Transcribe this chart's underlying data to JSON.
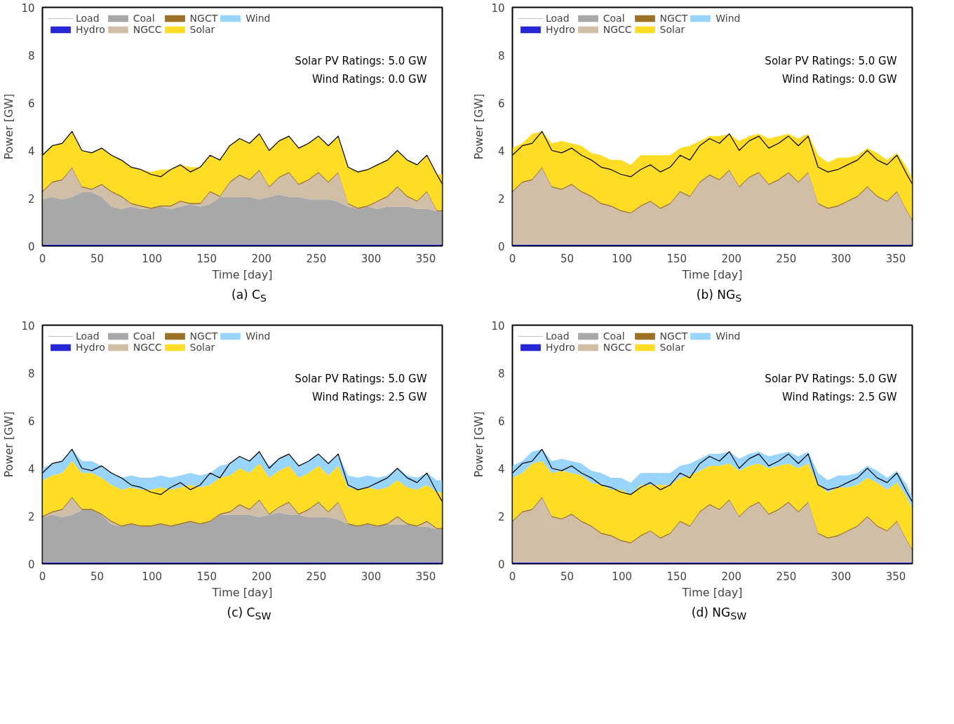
{
  "chart_data": [
    {
      "type": "area",
      "stacked": true,
      "title": "(a) C$_{S}$",
      "xlabel": "Time [day]",
      "ylabel": "Power [GW]",
      "xlim": [
        0,
        365
      ],
      "xticks": [
        0,
        50,
        100,
        150,
        200,
        250,
        300,
        350
      ],
      "ylim": [
        0,
        10
      ],
      "yticks": [
        0,
        2,
        4,
        6,
        8,
        10
      ],
      "legend": "top left",
      "annotations": [
        "Solar PV Ratings: 5.0 GW",
        "Wind Ratings: 0.0 GW"
      ],
      "x": [
        0,
        9,
        18,
        27,
        36,
        45,
        54,
        63,
        72,
        81,
        90,
        99,
        108,
        117,
        126,
        135,
        144,
        153,
        162,
        171,
        180,
        189,
        198,
        207,
        216,
        225,
        234,
        243,
        252,
        261,
        270,
        279,
        288,
        297,
        306,
        315,
        324,
        333,
        342,
        351,
        360,
        365
      ],
      "series": [
        {
          "name": "Load",
          "type": "line",
          "color": "#000000",
          "values": [
            3.8,
            4.2,
            4.3,
            4.8,
            4.0,
            3.9,
            4.1,
            3.8,
            3.6,
            3.3,
            3.2,
            3.0,
            2.9,
            3.2,
            3.4,
            3.1,
            3.3,
            3.8,
            3.6,
            4.2,
            4.5,
            4.3,
            4.7,
            4.0,
            4.4,
            4.6,
            4.1,
            4.3,
            4.6,
            4.2,
            4.6,
            3.3,
            3.1,
            3.2,
            3.4,
            3.6,
            4.0,
            3.6,
            3.4,
            3.8,
            3.0,
            2.6
          ]
        },
        {
          "name": "Hydro",
          "color": "#0000cc",
          "values": [
            0.05,
            0.05,
            0.05,
            0.05,
            0.05,
            0.05,
            0.05,
            0.05,
            0.05,
            0.05,
            0.05,
            0.05,
            0.05,
            0.05,
            0.05,
            0.05,
            0.05,
            0.05,
            0.05,
            0.05,
            0.05,
            0.05,
            0.05,
            0.05,
            0.05,
            0.05,
            0.05,
            0.05,
            0.05,
            0.05,
            0.05,
            0.05,
            0.05,
            0.05,
            0.05,
            0.05,
            0.05,
            0.05,
            0.05,
            0.05,
            0.05,
            0.05
          ]
        },
        {
          "name": "Coal",
          "color": "#999999",
          "values": [
            1.9,
            2.0,
            1.9,
            2.0,
            2.2,
            2.2,
            2.0,
            1.6,
            1.5,
            1.6,
            1.5,
            1.5,
            1.6,
            1.5,
            1.6,
            1.7,
            1.6,
            1.7,
            2.0,
            2.0,
            2.0,
            2.0,
            1.9,
            2.0,
            2.1,
            2.0,
            2.0,
            1.9,
            1.9,
            1.9,
            1.8,
            1.6,
            1.5,
            1.6,
            1.5,
            1.6,
            1.6,
            1.6,
            1.5,
            1.5,
            1.4,
            1.4
          ]
        },
        {
          "name": "NGCC",
          "color": "#c8b496",
          "values": [
            0.3,
            0.6,
            0.8,
            1.2,
            0.2,
            0.1,
            0.5,
            0.6,
            0.5,
            0.1,
            0.1,
            0,
            0,
            0.1,
            0.2,
            0,
            0.1,
            0.5,
            0,
            0.6,
            0.9,
            0.7,
            1.2,
            0.4,
            0.7,
            1.0,
            0.5,
            0.8,
            1.1,
            0.7,
            1.2,
            0.1,
            0,
            0,
            0.3,
            0.4,
            0.8,
            0.4,
            0.3,
            0.7,
            0,
            0
          ]
        },
        {
          "name": "NGCT",
          "color": "#8b5a00",
          "values": [
            0.05,
            0.05,
            0.05,
            0.05,
            0.05,
            0.05,
            0.05,
            0.05,
            0.05,
            0.05,
            0.05,
            0.05,
            0.05,
            0.05,
            0.05,
            0.05,
            0.05,
            0.05,
            0.05,
            0.05,
            0.05,
            0.05,
            0.05,
            0.05,
            0.05,
            0.05,
            0.05,
            0.05,
            0.05,
            0.05,
            0.05,
            0.05,
            0.05,
            0.05,
            0.05,
            0.05,
            0.05,
            0.05,
            0.05,
            0.05,
            0.05,
            0.05
          ]
        },
        {
          "name": "Solar",
          "color": "#ffd700",
          "values": [
            1.5,
            1.5,
            1.5,
            1.5,
            1.5,
            1.5,
            1.5,
            1.5,
            1.5,
            1.5,
            1.5,
            1.5,
            1.5,
            1.5,
            1.5,
            1.5,
            1.5,
            1.5,
            1.5,
            1.5,
            1.5,
            1.5,
            1.5,
            1.5,
            1.5,
            1.5,
            1.5,
            1.5,
            1.5,
            1.5,
            1.5,
            1.5,
            1.5,
            1.5,
            1.5,
            1.5,
            1.5,
            1.5,
            1.5,
            1.5,
            1.5,
            1.5
          ]
        },
        {
          "name": "Wind",
          "color": "#87cefa",
          "values": [
            null,
            null,
            null,
            null,
            null,
            null,
            null,
            null,
            null,
            null,
            null,
            null,
            null,
            null,
            null,
            null,
            null,
            null,
            null,
            null,
            null,
            null,
            null,
            null,
            null,
            null,
            null,
            null,
            null,
            null,
            null,
            null,
            null,
            null,
            null,
            null,
            null,
            null,
            null,
            null,
            null,
            null
          ]
        }
      ]
    },
    {
      "type": "area",
      "stacked": true,
      "title": "(b) NG$_{S}$",
      "xlabel": "Time [day]",
      "ylabel": "Power [GW]",
      "xlim": [
        0,
        365
      ],
      "xticks": [
        0,
        50,
        100,
        150,
        200,
        250,
        300,
        350
      ],
      "ylim": [
        0,
        10
      ],
      "yticks": [
        0,
        2,
        4,
        6,
        8,
        10
      ],
      "legend": "top left",
      "annotations": [
        "Solar PV Ratings: 5.0 GW",
        "Wind Ratings: 0.0 GW"
      ],
      "x": [
        0,
        9,
        18,
        27,
        36,
        45,
        54,
        63,
        72,
        81,
        90,
        99,
        108,
        117,
        126,
        135,
        144,
        153,
        162,
        171,
        180,
        189,
        198,
        207,
        216,
        225,
        234,
        243,
        252,
        261,
        270,
        279,
        288,
        297,
        306,
        315,
        324,
        333,
        342,
        351,
        360,
        365
      ],
      "series": [
        {
          "name": "Load",
          "type": "line",
          "color": "#000000",
          "values": [
            3.8,
            4.2,
            4.3,
            4.8,
            4.0,
            3.9,
            4.1,
            3.8,
            3.6,
            3.3,
            3.2,
            3.0,
            2.9,
            3.2,
            3.4,
            3.1,
            3.3,
            3.8,
            3.6,
            4.2,
            4.5,
            4.3,
            4.7,
            4.0,
            4.4,
            4.6,
            4.1,
            4.3,
            4.6,
            4.2,
            4.6,
            3.3,
            3.1,
            3.2,
            3.4,
            3.6,
            4.0,
            3.6,
            3.4,
            3.8,
            3.0,
            2.6
          ]
        },
        {
          "name": "Hydro",
          "color": "#0000cc",
          "values": [
            0.05,
            0.05,
            0.05,
            0.05,
            0.05,
            0.05,
            0.05,
            0.05,
            0.05,
            0.05,
            0.05,
            0.05,
            0.05,
            0.05,
            0.05,
            0.05,
            0.05,
            0.05,
            0.05,
            0.05,
            0.05,
            0.05,
            0.05,
            0.05,
            0.05,
            0.05,
            0.05,
            0.05,
            0.05,
            0.05,
            0.05,
            0.05,
            0.05,
            0.05,
            0.05,
            0.05,
            0.05,
            0.05,
            0.05,
            0.05,
            0.05,
            0.05
          ]
        },
        {
          "name": "Coal",
          "color": "#999999",
          "values": [
            null,
            null,
            null,
            null,
            null,
            null,
            null,
            null,
            null,
            null,
            null,
            null,
            null,
            null,
            null,
            null,
            null,
            null,
            null,
            null,
            null,
            null,
            null,
            null,
            null,
            null,
            null,
            null,
            null,
            null,
            null,
            null,
            null,
            null,
            null,
            null,
            null,
            null,
            null,
            null,
            null,
            null
          ]
        },
        {
          "name": "NGCC",
          "color": "#c8b496",
          "values": [
            2.2,
            2.6,
            2.7,
            3.2,
            2.4,
            2.3,
            2.5,
            2.2,
            2.0,
            1.7,
            1.6,
            1.4,
            1.3,
            1.6,
            1.8,
            1.5,
            1.7,
            2.2,
            2.0,
            2.6,
            2.9,
            2.7,
            3.1,
            2.4,
            2.8,
            3.0,
            2.5,
            2.7,
            3.0,
            2.6,
            3.0,
            1.7,
            1.5,
            1.6,
            1.8,
            2.0,
            2.4,
            2.0,
            1.8,
            2.2,
            1.4,
            1.0
          ]
        },
        {
          "name": "NGCT",
          "color": "#8b5a00",
          "values": [
            0.05,
            0.05,
            0.05,
            0.05,
            0.05,
            0.05,
            0.05,
            0.05,
            0.05,
            0.05,
            0.05,
            0.05,
            0.05,
            0.05,
            0.05,
            0.05,
            0.05,
            0.05,
            0.05,
            0.05,
            0.05,
            0.05,
            0.05,
            0.05,
            0.05,
            0.05,
            0.05,
            0.05,
            0.05,
            0.05,
            0.05,
            0.05,
            0.05,
            0.05,
            0.05,
            0.05,
            0.05,
            0.05,
            0.05,
            0.05,
            0.05,
            0.05
          ]
        },
        {
          "name": "Solar",
          "color": "#ffd700",
          "values": [
            1.8,
            1.6,
            1.9,
            1.5,
            1.8,
            2.0,
            1.7,
            1.9,
            1.8,
            2.0,
            1.9,
            2.1,
            2.0,
            2.1,
            1.9,
            2.2,
            2.0,
            1.8,
            2.1,
            1.7,
            1.6,
            1.8,
            1.5,
            1.9,
            1.7,
            1.6,
            1.9,
            1.8,
            1.6,
            1.8,
            1.6,
            2.0,
            1.9,
            2.0,
            1.8,
            1.7,
            1.6,
            1.8,
            1.7,
            1.6,
            1.8,
            1.7
          ]
        },
        {
          "name": "Wind",
          "color": "#87cefa",
          "values": [
            null,
            null,
            null,
            null,
            null,
            null,
            null,
            null,
            null,
            null,
            null,
            null,
            null,
            null,
            null,
            null,
            null,
            null,
            null,
            null,
            null,
            null,
            null,
            null,
            null,
            null,
            null,
            null,
            null,
            null,
            null,
            null,
            null,
            null,
            null,
            null,
            null,
            null,
            null,
            null,
            null,
            null
          ]
        }
      ]
    },
    {
      "type": "area",
      "stacked": true,
      "title": "(c) C$_{SW}$",
      "xlabel": "Time [day]",
      "ylabel": "Power [GW]",
      "xlim": [
        0,
        365
      ],
      "xticks": [
        0,
        50,
        100,
        150,
        200,
        250,
        300,
        350
      ],
      "ylim": [
        0,
        10
      ],
      "yticks": [
        0,
        2,
        4,
        6,
        8,
        10
      ],
      "legend": "top left",
      "annotations": [
        "Solar PV Ratings: 5.0 GW",
        "Wind Ratings: 2.5 GW"
      ],
      "x": [
        0,
        9,
        18,
        27,
        36,
        45,
        54,
        63,
        72,
        81,
        90,
        99,
        108,
        117,
        126,
        135,
        144,
        153,
        162,
        171,
        180,
        189,
        198,
        207,
        216,
        225,
        234,
        243,
        252,
        261,
        270,
        279,
        288,
        297,
        306,
        315,
        324,
        333,
        342,
        351,
        360,
        365
      ],
      "series": [
        {
          "name": "Load",
          "type": "line",
          "color": "#000000",
          "values": [
            3.8,
            4.2,
            4.3,
            4.8,
            4.0,
            3.9,
            4.1,
            3.8,
            3.6,
            3.3,
            3.2,
            3.0,
            2.9,
            3.2,
            3.4,
            3.1,
            3.3,
            3.8,
            3.6,
            4.2,
            4.5,
            4.3,
            4.7,
            4.0,
            4.4,
            4.6,
            4.1,
            4.3,
            4.6,
            4.2,
            4.6,
            3.3,
            3.1,
            3.2,
            3.4,
            3.6,
            4.0,
            3.6,
            3.4,
            3.8,
            3.0,
            2.6
          ]
        },
        {
          "name": "Hydro",
          "color": "#0000cc",
          "values": [
            0.05,
            0.05,
            0.05,
            0.05,
            0.05,
            0.05,
            0.05,
            0.05,
            0.05,
            0.05,
            0.05,
            0.05,
            0.05,
            0.05,
            0.05,
            0.05,
            0.05,
            0.05,
            0.05,
            0.05,
            0.05,
            0.05,
            0.05,
            0.05,
            0.05,
            0.05,
            0.05,
            0.05,
            0.05,
            0.05,
            0.05,
            0.05,
            0.05,
            0.05,
            0.05,
            0.05,
            0.05,
            0.05,
            0.05,
            0.05,
            0.05,
            0.05
          ]
        },
        {
          "name": "Coal",
          "color": "#999999",
          "values": [
            1.9,
            2.0,
            1.9,
            2.0,
            2.2,
            2.2,
            2.0,
            1.6,
            1.5,
            1.6,
            1.5,
            1.5,
            1.6,
            1.5,
            1.6,
            1.7,
            1.6,
            1.7,
            2.0,
            2.0,
            2.0,
            2.0,
            1.9,
            2.0,
            2.1,
            2.0,
            2.0,
            1.9,
            1.9,
            1.9,
            1.8,
            1.6,
            1.5,
            1.6,
            1.5,
            1.6,
            1.6,
            1.6,
            1.5,
            1.5,
            1.4,
            1.4
          ]
        },
        {
          "name": "NGCC",
          "color": "#c8b496",
          "values": [
            0,
            0.1,
            0.3,
            0.7,
            0,
            0,
            0,
            0.1,
            0,
            0,
            0,
            0,
            0,
            0,
            0,
            0,
            0,
            0,
            0,
            0.1,
            0.4,
            0.2,
            0.7,
            0,
            0.2,
            0.5,
            0,
            0.3,
            0.6,
            0.2,
            0.7,
            0,
            0,
            0,
            0,
            0,
            0.3,
            0,
            0,
            0.2,
            0,
            0
          ]
        },
        {
          "name": "NGCT",
          "color": "#8b5a00",
          "values": [
            0.05,
            0.05,
            0.05,
            0.05,
            0.05,
            0.05,
            0.05,
            0.05,
            0.05,
            0.05,
            0.05,
            0.05,
            0.05,
            0.05,
            0.05,
            0.05,
            0.05,
            0.05,
            0.05,
            0.05,
            0.05,
            0.05,
            0.05,
            0.05,
            0.05,
            0.05,
            0.05,
            0.05,
            0.05,
            0.05,
            0.05,
            0.05,
            0.05,
            0.05,
            0.05,
            0.05,
            0.05,
            0.05,
            0.05,
            0.05,
            0.05,
            0.05
          ]
        },
        {
          "name": "Solar",
          "color": "#ffd700",
          "values": [
            1.5,
            1.5,
            1.5,
            1.5,
            1.5,
            1.5,
            1.5,
            1.5,
            1.5,
            1.5,
            1.5,
            1.5,
            1.5,
            1.5,
            1.5,
            1.5,
            1.5,
            1.5,
            1.5,
            1.5,
            1.5,
            1.5,
            1.5,
            1.5,
            1.5,
            1.5,
            1.5,
            1.5,
            1.5,
            1.5,
            1.5,
            1.5,
            1.5,
            1.5,
            1.5,
            1.5,
            1.5,
            1.5,
            1.5,
            1.5,
            1.5,
            1.5
          ]
        },
        {
          "name": "Wind",
          "color": "#87cefa",
          "values": [
            0.5,
            0.5,
            0.5,
            0.5,
            0.5,
            0.5,
            0.5,
            0.5,
            0.5,
            0.5,
            0.5,
            0.5,
            0.5,
            0.5,
            0.5,
            0.5,
            0.5,
            0.5,
            0.5,
            0.5,
            0.5,
            0.5,
            0.5,
            0.5,
            0.5,
            0.5,
            0.5,
            0.5,
            0.5,
            0.5,
            0.5,
            0.5,
            0.5,
            0.5,
            0.5,
            0.5,
            0.5,
            0.5,
            0.5,
            0.5,
            0.5,
            0.5
          ]
        }
      ]
    },
    {
      "type": "area",
      "stacked": true,
      "title": "(d) NG$_{SW}$",
      "xlabel": "Time [day]",
      "ylabel": "Power [GW]",
      "xlim": [
        0,
        365
      ],
      "xticks": [
        0,
        50,
        100,
        150,
        200,
        250,
        300,
        350
      ],
      "ylim": [
        0,
        10
      ],
      "yticks": [
        0,
        2,
        4,
        6,
        8,
        10
      ],
      "legend": "top left",
      "annotations": [
        "Solar PV Ratings: 5.0 GW",
        "Wind Ratings: 2.5 GW"
      ],
      "x": [
        0,
        9,
        18,
        27,
        36,
        45,
        54,
        63,
        72,
        81,
        90,
        99,
        108,
        117,
        126,
        135,
        144,
        153,
        162,
        171,
        180,
        189,
        198,
        207,
        216,
        225,
        234,
        243,
        252,
        261,
        270,
        279,
        288,
        297,
        306,
        315,
        324,
        333,
        342,
        351,
        360,
        365
      ],
      "series": [
        {
          "name": "Load",
          "type": "line",
          "color": "#000000",
          "values": [
            3.8,
            4.2,
            4.3,
            4.8,
            4.0,
            3.9,
            4.1,
            3.8,
            3.6,
            3.3,
            3.2,
            3.0,
            2.9,
            3.2,
            3.4,
            3.1,
            3.3,
            3.8,
            3.6,
            4.2,
            4.5,
            4.3,
            4.7,
            4.0,
            4.4,
            4.6,
            4.1,
            4.3,
            4.6,
            4.2,
            4.6,
            3.3,
            3.1,
            3.2,
            3.4,
            3.6,
            4.0,
            3.6,
            3.4,
            3.8,
            3.0,
            2.6
          ]
        },
        {
          "name": "Hydro",
          "color": "#0000cc",
          "values": [
            0.05,
            0.05,
            0.05,
            0.05,
            0.05,
            0.05,
            0.05,
            0.05,
            0.05,
            0.05,
            0.05,
            0.05,
            0.05,
            0.05,
            0.05,
            0.05,
            0.05,
            0.05,
            0.05,
            0.05,
            0.05,
            0.05,
            0.05,
            0.05,
            0.05,
            0.05,
            0.05,
            0.05,
            0.05,
            0.05,
            0.05,
            0.05,
            0.05,
            0.05,
            0.05,
            0.05,
            0.05,
            0.05,
            0.05,
            0.05,
            0.05,
            0.05
          ]
        },
        {
          "name": "Coal",
          "color": "#999999",
          "values": [
            null,
            null,
            null,
            null,
            null,
            null,
            null,
            null,
            null,
            null,
            null,
            null,
            null,
            null,
            null,
            null,
            null,
            null,
            null,
            null,
            null,
            null,
            null,
            null,
            null,
            null,
            null,
            null,
            null,
            null,
            null,
            null,
            null,
            null,
            null,
            null,
            null,
            null,
            null,
            null,
            null,
            null
          ]
        },
        {
          "name": "NGCC",
          "color": "#c8b496",
          "values": [
            1.7,
            2.1,
            2.2,
            2.7,
            1.9,
            1.8,
            2.0,
            1.7,
            1.5,
            1.2,
            1.1,
            0.9,
            0.8,
            1.1,
            1.3,
            1.0,
            1.2,
            1.7,
            1.5,
            2.1,
            2.4,
            2.2,
            2.6,
            1.9,
            2.3,
            2.5,
            2.0,
            2.2,
            2.5,
            2.1,
            2.5,
            1.2,
            1.0,
            1.1,
            1.3,
            1.5,
            1.9,
            1.5,
            1.3,
            1.7,
            0.9,
            0.5
          ]
        },
        {
          "name": "NGCT",
          "color": "#8b5a00",
          "values": [
            0.05,
            0.05,
            0.05,
            0.05,
            0.05,
            0.05,
            0.05,
            0.05,
            0.05,
            0.05,
            0.05,
            0.05,
            0.05,
            0.05,
            0.05,
            0.05,
            0.05,
            0.05,
            0.05,
            0.05,
            0.05,
            0.05,
            0.05,
            0.05,
            0.05,
            0.05,
            0.05,
            0.05,
            0.05,
            0.05,
            0.05,
            0.05,
            0.05,
            0.05,
            0.05,
            0.05,
            0.05,
            0.05,
            0.05,
            0.05,
            0.05,
            0.05
          ]
        },
        {
          "name": "Solar",
          "color": "#ffd700",
          "values": [
            1.8,
            1.6,
            1.9,
            1.5,
            1.8,
            2.0,
            1.7,
            1.9,
            1.8,
            2.0,
            1.9,
            2.1,
            2.0,
            2.1,
            1.9,
            2.2,
            2.0,
            1.8,
            2.1,
            1.7,
            1.6,
            1.8,
            1.5,
            1.9,
            1.7,
            1.6,
            1.9,
            1.8,
            1.6,
            1.8,
            1.6,
            2.0,
            1.9,
            2.0,
            1.8,
            1.7,
            1.6,
            1.8,
            1.7,
            1.6,
            1.8,
            1.7
          ]
        },
        {
          "name": "Wind",
          "color": "#87cefa",
          "values": [
            0.5,
            0.5,
            0.5,
            0.5,
            0.5,
            0.5,
            0.5,
            0.5,
            0.5,
            0.5,
            0.5,
            0.5,
            0.5,
            0.5,
            0.5,
            0.5,
            0.5,
            0.5,
            0.5,
            0.5,
            0.5,
            0.5,
            0.5,
            0.5,
            0.5,
            0.5,
            0.5,
            0.5,
            0.5,
            0.5,
            0.5,
            0.5,
            0.5,
            0.5,
            0.5,
            0.5,
            0.5,
            0.5,
            0.5,
            0.5,
            0.5,
            0.5
          ]
        }
      ]
    }
  ]
}
